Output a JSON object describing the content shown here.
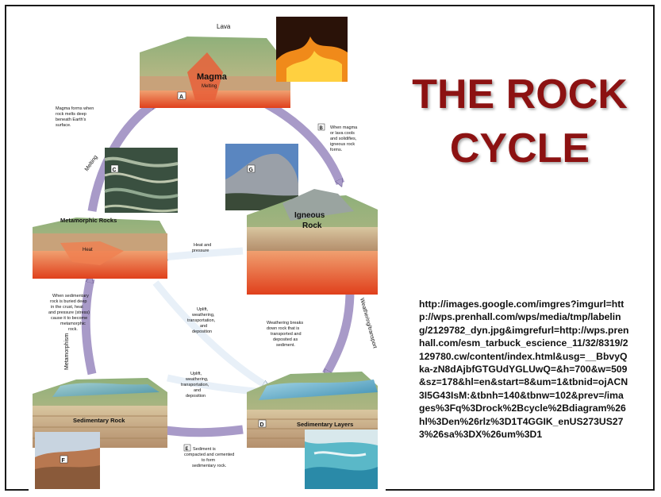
{
  "title": {
    "line1": "THE ROCK",
    "line2": "CYCLE"
  },
  "source_url": "http://images.google.com/imgres?imgurl=http://wps.prenhall.com/wps/media/tmp/labeling/2129782_dyn.jpg&imgrefurl=http://wps.prenhall.com/esm_tarbuck_escience_11/32/8319/2129780.cw/content/index.html&usg=__BbvyQka-zN8dAjbfGTGUdYGLUwQ=&h=700&w=509&sz=178&hl=en&start=8&um=1&tbnid=ojACN3I5G43IsM:&tbnh=140&tbnw=102&prev=/images%3Fq%3Drock%2Bcycle%2Bdiagram%26hl%3Den%26rlz%3D1T4GGIK_enUS273US273%26sa%3DX%26um%3D1",
  "diagram": {
    "stations": {
      "magma": "Magma",
      "melting": "Melting",
      "lava": "Lava",
      "igneous_1": "Igneous",
      "igneous_2": "Rock",
      "metamorphic": "Metamorphic Rocks",
      "heat": "Heat",
      "sedimentary_rock": "Sedimentary Rock",
      "sedimentary_layers": "Sedimentary Layers"
    },
    "letters": {
      "a": "A",
      "b": "B",
      "c": "C",
      "d": "D",
      "e": "E",
      "f": "F",
      "g": "G"
    },
    "notes": {
      "magma_forms": [
        "Magma forms when",
        "rock melts deep",
        "beneath Earth's",
        "surface."
      ],
      "when_magma": [
        "When magma",
        "or lava cools",
        "and solidifies,",
        "igneous rock",
        "forms."
      ],
      "heat_pressure": [
        "Heat and",
        "pressure"
      ],
      "uplift_1": [
        "Uplift,",
        "weathering,",
        "transportation,",
        "and",
        "deposition"
      ],
      "uplift_2": [
        "Uplift,",
        "weathering,",
        "transportation,",
        "and",
        "deposition"
      ],
      "weathering_breaks": [
        "Weathering breaks",
        "down rock that is",
        "transported and",
        "deposited as",
        "sediment."
      ],
      "when_sedimentary": [
        "When sedimentary",
        "rock is buried deep",
        "in the crust, heat",
        "and pressure (stress)",
        "cause it to become",
        "metamorphic",
        "rock."
      ],
      "sediment_compacted": [
        "Sediment is",
        "compacted and cemented",
        "to form",
        "sedimentary rock."
      ]
    },
    "arrows": {
      "melting": "Melting",
      "metamorphism": "Metamorphism",
      "weathering_transport": "Weathering/transport"
    }
  },
  "colors": {
    "title": "#8c1212",
    "arrow": "#a89ac8",
    "crust": "#c8a27a",
    "mantle": "#e2502a"
  }
}
